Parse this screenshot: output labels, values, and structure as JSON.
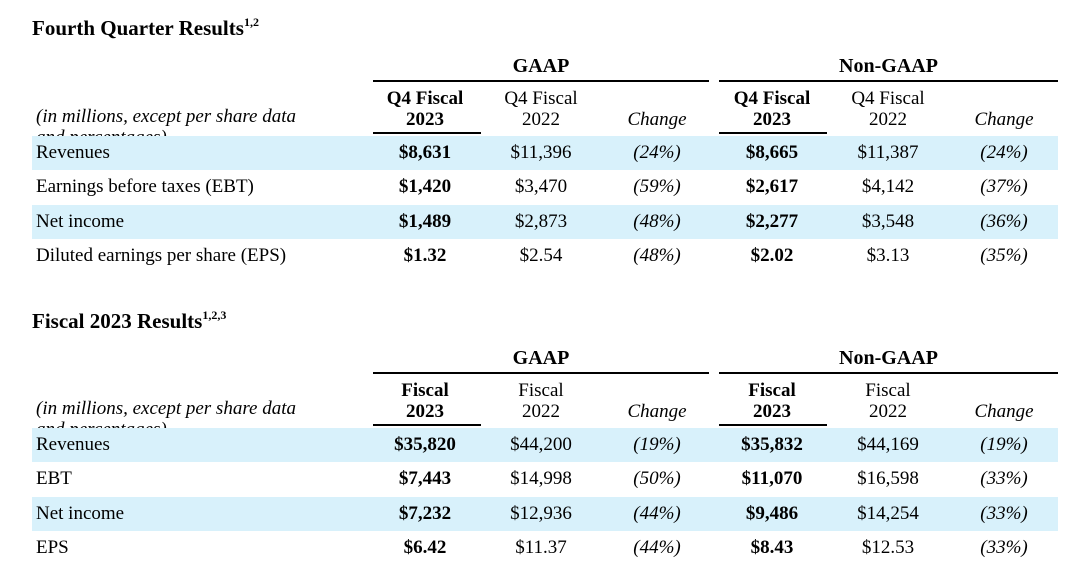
{
  "q4": {
    "title": "Fourth Quarter Results",
    "title_sup": "1,2",
    "gaap_label": "GAAP",
    "nongaap_label": "Non-GAAP",
    "note_line1": "(in millions, except per share data",
    "note_line2": "and percentages)",
    "columns": {
      "c1_line1": "Q4 Fiscal",
      "c1_line2": "2023",
      "c2_line1": "Q4 Fiscal",
      "c2_line2": "2022",
      "c3": "Change",
      "c4_line1": "Q4 Fiscal",
      "c4_line2": "2023",
      "c5_line1": "Q4 Fiscal",
      "c5_line2": "2022",
      "c6": "Change"
    },
    "rows": [
      {
        "label": "Revenues",
        "v": [
          "$8,631",
          "$11,396",
          "(24%)",
          "$8,665",
          "$11,387",
          "(24%)"
        ]
      },
      {
        "label": "Earnings before taxes (EBT)",
        "v": [
          "$1,420",
          "$3,470",
          "(59%)",
          "$2,617",
          "$4,142",
          "(37%)"
        ]
      },
      {
        "label": "Net income",
        "v": [
          "$1,489",
          "$2,873",
          "(48%)",
          "$2,277",
          "$3,548",
          "(36%)"
        ]
      },
      {
        "label": "Diluted earnings per share (EPS)",
        "v": [
          "$1.32",
          "$2.54",
          "(48%)",
          "$2.02",
          "$3.13",
          "(35%)"
        ]
      }
    ]
  },
  "fy": {
    "title": "Fiscal 2023 Results",
    "title_sup": "1,2,3",
    "gaap_label": "GAAP",
    "nongaap_label": "Non-GAAP",
    "note_line1": "(in millions, except per share data",
    "note_line2": "and percentages)",
    "columns": {
      "c1_line1": "Fiscal",
      "c1_line2": "2023",
      "c2_line1": "Fiscal",
      "c2_line2": "2022",
      "c3": "Change",
      "c4_line1": "Fiscal",
      "c4_line2": "2023",
      "c5_line1": "Fiscal",
      "c5_line2": "2022",
      "c6": "Change"
    },
    "rows": [
      {
        "label": "Revenues",
        "v": [
          "$35,820",
          "$44,200",
          "(19%)",
          "$35,832",
          "$44,169",
          "(19%)"
        ]
      },
      {
        "label": "EBT",
        "v": [
          "$7,443",
          "$14,998",
          "(50%)",
          "$11,070",
          "$16,598",
          "(33%)"
        ]
      },
      {
        "label": "Net income",
        "v": [
          "$7,232",
          "$12,936",
          "(44%)",
          "$9,486",
          "$14,254",
          "(33%)"
        ]
      },
      {
        "label": "EPS",
        "v": [
          "$6.42",
          "$11.37",
          "(44%)",
          "$8.43",
          "$12.53",
          "(33%)"
        ]
      }
    ]
  }
}
